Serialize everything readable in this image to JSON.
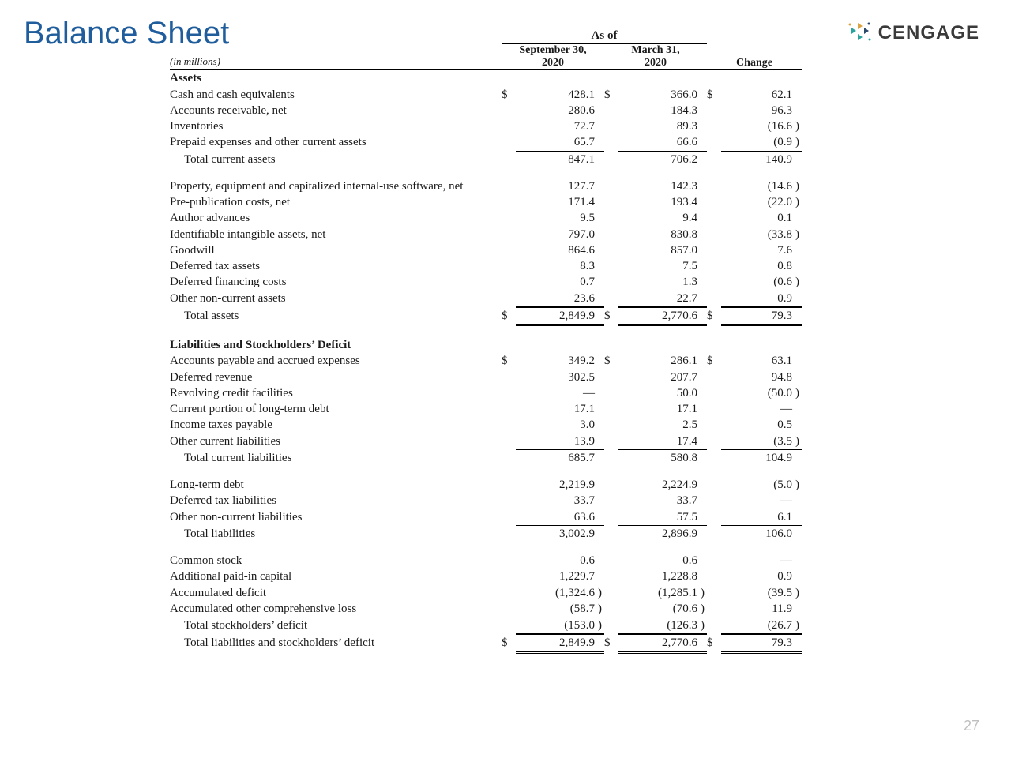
{
  "title": "Balance Sheet",
  "logo_text": "CENGAGE",
  "page_number": "27",
  "unit_note": "(in millions)",
  "asof_label": "As of",
  "col1_line1": "September 30,",
  "col1_line2": "2020",
  "col2_line1": "March 31,",
  "col2_line2": "2020",
  "col3_label": "Change",
  "colors": {
    "title": "#1f5d9c",
    "text": "#1a1a1a",
    "page_number": "#bfbfbf",
    "logo_teal": "#2aa39f",
    "logo_gold": "#d9a441",
    "logo_navy": "#2c4a6b"
  },
  "rows": [
    {
      "type": "section",
      "label": "Assets"
    },
    {
      "type": "line",
      "label": "Cash and cash equivalents",
      "v1": "428.1",
      "v2": "366.0",
      "v3": "62.1",
      "sym": true
    },
    {
      "type": "line",
      "label": "Accounts receivable, net",
      "v1": "280.6",
      "v2": "184.3",
      "v3": "96.3"
    },
    {
      "type": "line",
      "label": "Inventories",
      "v1": "72.7",
      "v2": "89.3",
      "v3": "(16.6)"
    },
    {
      "type": "line",
      "label": "Prepaid expenses and other current assets",
      "v1": "65.7",
      "v2": "66.6",
      "v3": "(0.9)",
      "underline": true
    },
    {
      "type": "line",
      "label": "Total current assets",
      "indent": 1,
      "v1": "847.1",
      "v2": "706.2",
      "v3": "140.9"
    },
    {
      "type": "spacer"
    },
    {
      "type": "line",
      "label": "Property, equipment and capitalized internal-use software, net",
      "v1": "127.7",
      "v2": "142.3",
      "v3": "(14.6)"
    },
    {
      "type": "line",
      "label": "Pre-publication costs, net",
      "v1": "171.4",
      "v2": "193.4",
      "v3": "(22.0)"
    },
    {
      "type": "line",
      "label": "Author advances",
      "v1": "9.5",
      "v2": "9.4",
      "v3": "0.1"
    },
    {
      "type": "line",
      "label": "Identifiable intangible assets, net",
      "v1": "797.0",
      "v2": "830.8",
      "v3": "(33.8)"
    },
    {
      "type": "line",
      "label": "Goodwill",
      "v1": "864.6",
      "v2": "857.0",
      "v3": "7.6"
    },
    {
      "type": "line",
      "label": "Deferred tax assets",
      "v1": "8.3",
      "v2": "7.5",
      "v3": "0.8"
    },
    {
      "type": "line",
      "label": "Deferred financing costs",
      "v1": "0.7",
      "v2": "1.3",
      "v3": "(0.6)"
    },
    {
      "type": "line",
      "label": "Other non-current assets",
      "v1": "23.6",
      "v2": "22.7",
      "v3": "0.9",
      "underline": true
    },
    {
      "type": "line",
      "label": "Total assets",
      "indent": 1,
      "v1": "2,849.9",
      "v2": "2,770.6",
      "v3": "79.3",
      "sym": true,
      "dbl": true
    },
    {
      "type": "spacer"
    },
    {
      "type": "section",
      "label": "Liabilities and Stockholders’ Deficit"
    },
    {
      "type": "line",
      "label": "Accounts payable and accrued expenses",
      "v1": "349.2",
      "v2": "286.1",
      "v3": "63.1",
      "sym": true
    },
    {
      "type": "line",
      "label": "Deferred revenue",
      "v1": "302.5",
      "v2": "207.7",
      "v3": "94.8"
    },
    {
      "type": "line",
      "label": "Revolving credit facilities",
      "v1": "—",
      "v2": "50.0",
      "v3": "(50.0)"
    },
    {
      "type": "line",
      "label": "Current portion of long-term debt",
      "v1": "17.1",
      "v2": "17.1",
      "v3": "—"
    },
    {
      "type": "line",
      "label": "Income taxes payable",
      "v1": "3.0",
      "v2": "2.5",
      "v3": "0.5"
    },
    {
      "type": "line",
      "label": "Other current liabilities",
      "v1": "13.9",
      "v2": "17.4",
      "v3": "(3.5)",
      "underline": true
    },
    {
      "type": "line",
      "label": "Total current liabilities",
      "indent": 1,
      "v1": "685.7",
      "v2": "580.8",
      "v3": "104.9"
    },
    {
      "type": "spacer"
    },
    {
      "type": "line",
      "label": "Long-term debt",
      "v1": "2,219.9",
      "v2": "2,224.9",
      "v3": "(5.0)"
    },
    {
      "type": "line",
      "label": "Deferred tax liabilities",
      "v1": "33.7",
      "v2": "33.7",
      "v3": "—"
    },
    {
      "type": "line",
      "label": "Other non-current liabilities",
      "v1": "63.6",
      "v2": "57.5",
      "v3": "6.1",
      "underline": true
    },
    {
      "type": "line",
      "label": "Total liabilities",
      "indent": 1,
      "v1": "3,002.9",
      "v2": "2,896.9",
      "v3": "106.0"
    },
    {
      "type": "spacer"
    },
    {
      "type": "line",
      "label": "Common stock",
      "v1": "0.6",
      "v2": "0.6",
      "v3": "—"
    },
    {
      "type": "line",
      "label": "Additional paid-in capital",
      "v1": "1,229.7",
      "v2": "1,228.8",
      "v3": "0.9"
    },
    {
      "type": "line",
      "label": "Accumulated deficit",
      "v1": "(1,324.6)",
      "v2": "(1,285.1)",
      "v3": "(39.5)"
    },
    {
      "type": "line",
      "label": "Accumulated other comprehensive loss",
      "v1": "(58.7)",
      "v2": "(70.6)",
      "v3": "11.9",
      "underline": true
    },
    {
      "type": "line",
      "label": "Total stockholders’ deficit",
      "indent": 1,
      "v1": "(153.0)",
      "v2": "(126.3)",
      "v3": "(26.7)",
      "underline": true
    },
    {
      "type": "line",
      "label": "Total liabilities and stockholders’ deficit",
      "indent": 1,
      "v1": "2,849.9",
      "v2": "2,770.6",
      "v3": "79.3",
      "sym": true,
      "dbl": true
    }
  ]
}
